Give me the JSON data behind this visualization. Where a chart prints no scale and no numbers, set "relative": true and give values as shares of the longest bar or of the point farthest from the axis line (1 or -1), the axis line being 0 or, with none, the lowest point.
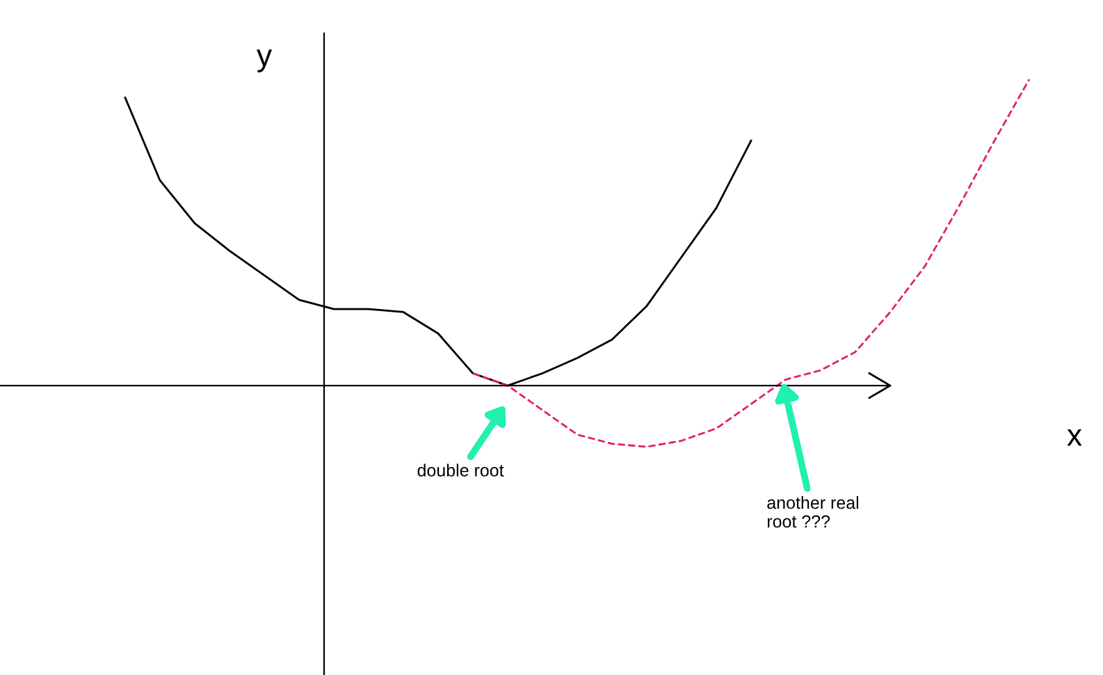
{
  "chart_data": {
    "type": "line",
    "relative": true,
    "xlabel": "x",
    "ylabel": "y",
    "legend": false,
    "marker": "none",
    "categories": [
      null,
      null,
      null,
      null,
      null,
      null,
      null,
      null,
      null,
      null,
      null,
      null,
      null,
      null,
      null,
      null,
      null,
      null,
      null,
      null,
      null,
      null,
      null,
      null,
      null,
      null,
      null,
      null,
      null,
      null
    ],
    "series": [
      {
        "color": "#000000",
        "line_style": "solid",
        "values": [
          null,
          null,
          null,
          0.94,
          0.67,
          0.53,
          0.44,
          0.36,
          0.28,
          0.25,
          0.25,
          0.24,
          0.17,
          0.04,
          0,
          0.04,
          0.09,
          0.15,
          0.26,
          0.42,
          0.58,
          0.8,
          null,
          null,
          null,
          null,
          null,
          null,
          null,
          null
        ]
      },
      {
        "color": "#e0206a",
        "line_style": "dashed",
        "values": [
          null,
          null,
          null,
          null,
          null,
          null,
          null,
          null,
          null,
          null,
          null,
          null,
          null,
          0.04,
          0,
          -0.08,
          -0.16,
          -0.19,
          -0.2,
          -0.18,
          -0.14,
          -0.06,
          0.02,
          0.05,
          0.11,
          0.24,
          0.39,
          0.59,
          0.8,
          1
        ]
      }
    ],
    "annotations": [
      "double root",
      "another real\nroot ???"
    ]
  }
}
